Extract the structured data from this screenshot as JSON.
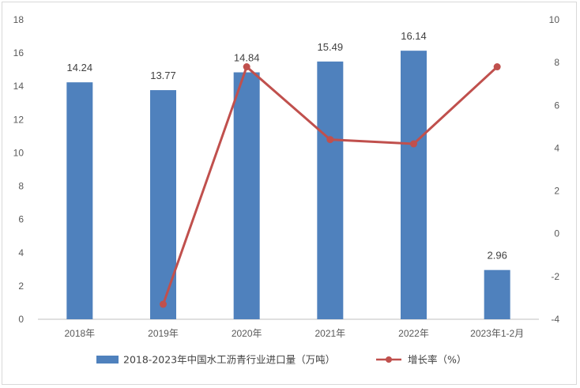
{
  "chart_data": {
    "type": "bar",
    "categories": [
      "2018年",
      "2019年",
      "2020年",
      "2021年",
      "2022年",
      "2023年1-2月"
    ],
    "series": [
      {
        "name": "2018-2023年中国水工沥青行业进口量（万吨）",
        "type": "bar",
        "axis": "left",
        "values": [
          14.24,
          13.77,
          14.84,
          15.49,
          16.14,
          2.96
        ],
        "labels": [
          "14.24",
          "13.77",
          "14.84",
          "15.49",
          "16.14",
          "2.96"
        ],
        "color": "#4f81bd"
      },
      {
        "name": "增长率（%）",
        "type": "line",
        "axis": "right",
        "values": [
          null,
          -3.3,
          7.8,
          4.4,
          4.2,
          7.8
        ],
        "color": "#c0504d"
      }
    ],
    "y_left": {
      "min": 0,
      "max": 18,
      "step": 2,
      "ticks": [
        "0",
        "2",
        "4",
        "6",
        "8",
        "10",
        "12",
        "14",
        "16",
        "18"
      ]
    },
    "y_right": {
      "min": -4,
      "max": 10,
      "step": 2,
      "ticks": [
        "-4",
        "-2",
        "0",
        "2",
        "4",
        "6",
        "8",
        "10"
      ]
    },
    "grid": false,
    "legend_position": "bottom"
  },
  "colors": {
    "bar": "#4f81bd",
    "line": "#c0504d",
    "axis": "#bfbfbf"
  }
}
